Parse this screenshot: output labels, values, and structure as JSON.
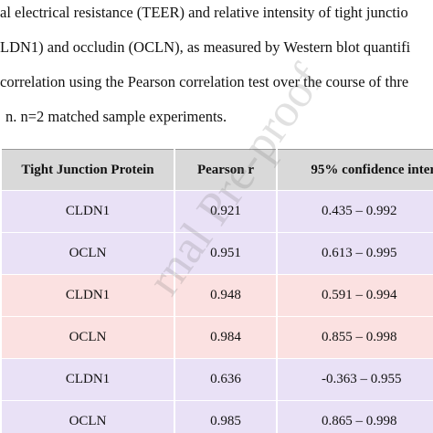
{
  "text_lines": [
    "al electrical resistance (TEER) and relative intensity of tight junctio",
    "LDN1) and occludin (OCLN), as measured by Western blot quantifi",
    "correlation using the Pearson correlation test over the course of thre",
    "n. n=2 matched sample experiments."
  ],
  "table": {
    "header": [
      "Tight Junction Protein",
      "Pearson r",
      "95% confidence interv"
    ],
    "rows": [
      [
        "CLDN1",
        "0.921",
        "0.435 – 0.992"
      ],
      [
        "OCLN",
        "0.951",
        "0.613 – 0.995"
      ],
      [
        "CLDN1",
        "0.948",
        "0.591 – 0.994"
      ],
      [
        "OCLN",
        "0.984",
        "0.855 – 0.998"
      ],
      [
        "CLDN1",
        "0.636",
        "-0.363 – 0.955"
      ],
      [
        "OCLN",
        "0.985",
        "0.865 – 0.998"
      ]
    ]
  },
  "watermark": "rnal Pre-proof"
}
